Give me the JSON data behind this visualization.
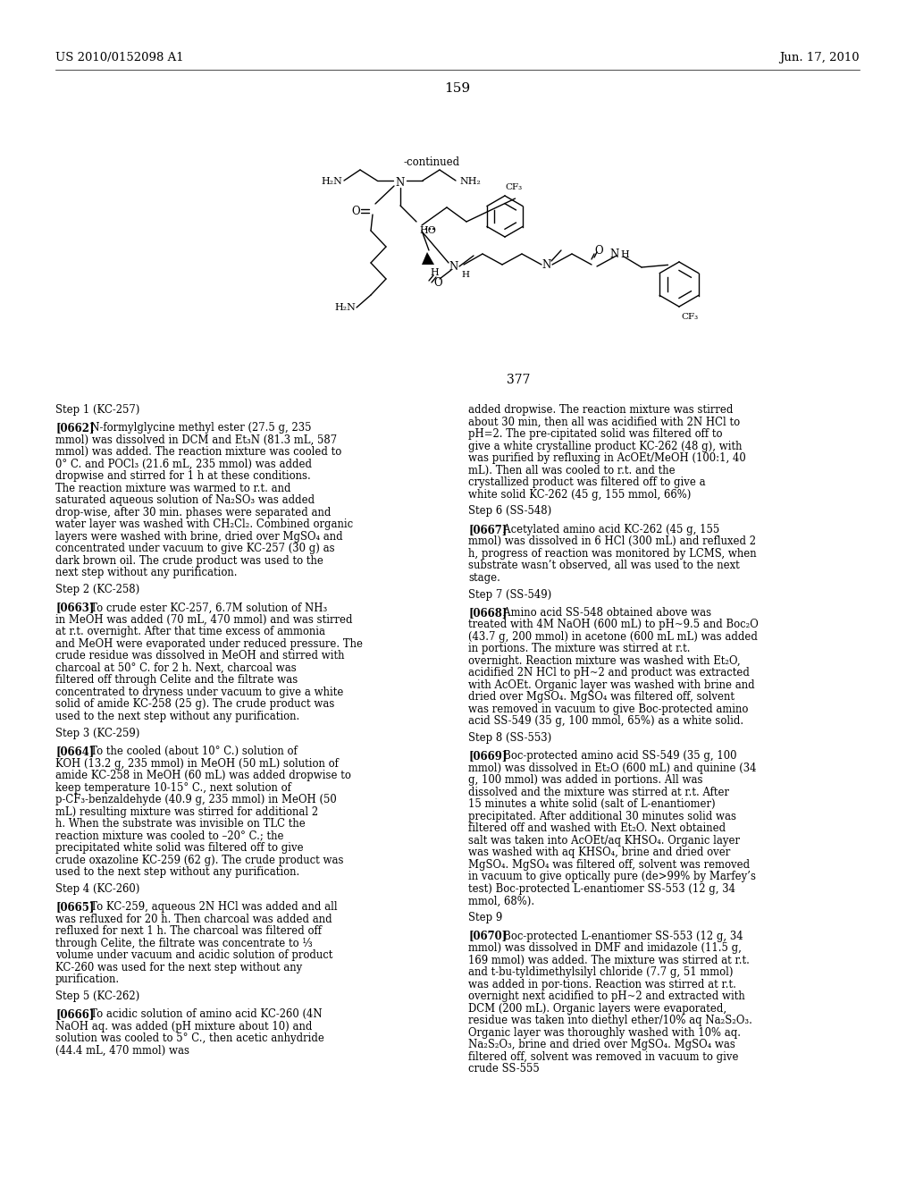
{
  "bg_color": "#ffffff",
  "header_left": "US 2010/0152098 A1",
  "header_right": "Jun. 17, 2010",
  "page_number": "159",
  "compound_number": "377",
  "left_column": [
    {
      "type": "heading",
      "text": "Step 1 (KC-257)"
    },
    {
      "type": "paragraph",
      "tag": "[0662]",
      "text": "N-formylglycine methyl ester (27.5 g, 235 mmol) was dissolved in DCM and Et₃N (81.3 mL, 587 mmol) was added. The reaction mixture was cooled to 0° C. and POCl₃ (21.6 mL, 235 mmol) was added dropwise and stirred for 1 h at these conditions. The reaction mixture was warmed to r.t. and saturated aqueous solution of Na₂SO₃ was added drop-wise, after 30 min. phases were separated and water layer was washed with CH₂Cl₂. Combined organic layers were washed with brine, dried over MgSO₄ and concentrated under vacuum to give KC-257 (30 g) as dark brown oil. The crude product was used to the next step without any purification."
    },
    {
      "type": "heading",
      "text": "Step 2 (KC-258)"
    },
    {
      "type": "paragraph",
      "tag": "[0663]",
      "text": "To crude ester KC-257, 6.7M solution of NH₃ in MeOH was added (70 mL, 470 mmol) and was stirred at r.t. overnight. After that time excess of ammonia and MeOH were evaporated under reduced pressure. The crude residue was dissolved in MeOH and stirred with charcoal at 50° C. for 2 h. Next, charcoal was filtered off through Celite and the filtrate was concentrated to dryness under vacuum to give a white solid of amide KC-258 (25 g). The crude product was used to the next step without any purification."
    },
    {
      "type": "heading",
      "text": "Step 3 (KC-259)"
    },
    {
      "type": "paragraph",
      "tag": "[0664]",
      "text": "To the cooled (about 10° C.) solution of KOH (13.2 g, 235 mmol) in MeOH (50 mL) solution of amide KC-258 in MeOH (60 mL) was added dropwise to keep temperature 10-15° C., next solution of p-CF₃-benzaldehyde (40.9 g, 235 mmol) in MeOH (50 mL) resulting mixture was stirred for additional 2 h. When the substrate was invisible on TLC the reaction mixture was cooled to –20° C.; the precipitated white solid was filtered off to give crude oxazoline KC-259 (62 g). The crude product was used to the next step without any purification."
    },
    {
      "type": "heading",
      "text": "Step 4 (KC-260)"
    },
    {
      "type": "paragraph",
      "tag": "[0665]",
      "text": "To KC-259, aqueous 2N HCl was added and all was refluxed for 20 h. Then charcoal was added and refluxed for next 1 h. The charcoal was filtered off through Celite, the filtrate was concentrate to ⅓ volume under vacuum and acidic solution of product KC-260 was used for the next step without any purification."
    },
    {
      "type": "heading",
      "text": "Step 5 (KC-262)"
    },
    {
      "type": "paragraph",
      "tag": "[0666]",
      "text": "To acidic solution of amino acid KC-260 (4N NaOH aq. was added (pH mixture about 10) and solution was cooled to 5° C., then acetic anhydride (44.4 mL, 470 mmol) was"
    }
  ],
  "right_column": [
    {
      "type": "paragraph_cont",
      "text": "added dropwise. The reaction mixture was stirred about 30 min, then all was acidified with 2N HCl to pH=2. The pre-cipitated solid was filtered off to give a white crystalline product KC-262 (48 g), with was purified by refluxing in AcOEt/MeOH (100:1, 40 mL). Then all was cooled to r.t. and the crystallized product was filtered off to give a white solid KC-262 (45 g, 155 mmol, 66%)"
    },
    {
      "type": "heading",
      "text": "Step 6 (SS-548)"
    },
    {
      "type": "paragraph",
      "tag": "[0667]",
      "text": "Acetylated amino acid KC-262 (45 g, 155 mmol) was dissolved in 6 HCl (300 mL) and refluxed 2 h, progress of reaction was monitored by LCMS, when substrate wasn’t observed, all was used to the next stage."
    },
    {
      "type": "heading",
      "text": "Step 7 (SS-549)"
    },
    {
      "type": "paragraph",
      "tag": "[0668]",
      "text": "Amino acid SS-548 obtained above was treated with 4M NaOH (600 mL) to pH~9.5 and Boc₂O (43.7 g, 200 mmol) in acetone (600 mL mL) was added in portions. The mixture was stirred at r.t. overnight. Reaction mixture was washed with Et₂O, acidified 2N HCl to pH~2 and product was extracted with AcOEt. Organic layer was washed with brine and dried over MgSO₄. MgSO₄ was filtered off, solvent was removed in vacuum to give Boc-protected amino acid SS-549 (35 g, 100 mmol, 65%) as a white solid."
    },
    {
      "type": "heading",
      "text": "Step 8 (SS-553)"
    },
    {
      "type": "paragraph",
      "tag": "[0669]",
      "text": "Boc-protected amino acid SS-549 (35 g, 100 mmol) was dissolved in Et₂O (600 mL) and quinine (34 g, 100 mmol) was added in portions. All was dissolved and the mixture was stirred at r.t. After 15 minutes a white solid (salt of L-enantiomer) precipitated. After additional 30 minutes solid was filtered off and washed with Et₂O. Next obtained salt was taken into AcOEt/aq KHSO₄. Organic layer was washed with aq KHSO₄, brine and dried over MgSO₄. MgSO₄ was filtered off, solvent was removed in vacuum to give optically pure (de>99% by Marfey’s test) Boc-protected L-enantiomer SS-553 (12 g, 34 mmol, 68%)."
    },
    {
      "type": "heading",
      "text": "Step 9"
    },
    {
      "type": "paragraph",
      "tag": "[0670]",
      "text": "Boc-protected L-enantiomer SS-553 (12 g, 34 mmol) was dissolved in DMF and imidazole (11.5 g, 169 mmol) was added. The mixture was stirred at r.t. and t-bu-tyldimethylsilyl chloride (7.7 g, 51 mmol) was added in por-tions. Reaction was stirred at r.t. overnight next acidified to pH~2 and extracted with DCM (200 mL). Organic layers were evaporated, residue was taken into diethyl ether/10% aq Na₂S₂O₃. Organic layer was thoroughly washed with 10% aq. Na₂S₂O₃, brine and dried over MgSO₄. MgSO₄ was filtered off, solvent was removed in vacuum to give crude SS-555"
    }
  ]
}
